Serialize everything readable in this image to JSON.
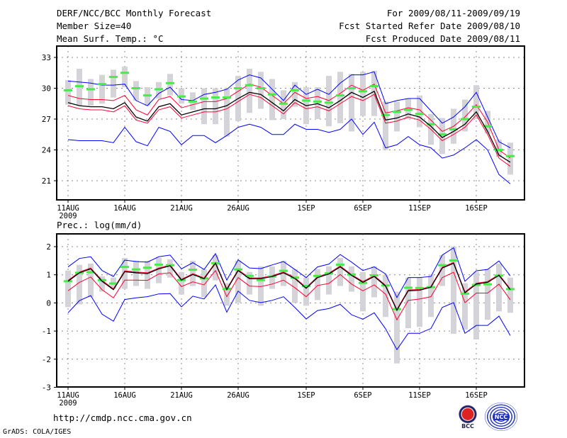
{
  "header": {
    "title": "DERF/NCC/BCC Monthly Forecast",
    "member_size": "Member Size=40",
    "variable": "Mean Surf. Temp.: °C",
    "period": "For 2009/08/11-2009/09/19",
    "started": "Fcst Started Refer Date 2009/08/10",
    "produced": "Fcst Produced Date 2009/08/11"
  },
  "footer": {
    "url": "http://cmdp.ncc.cma.gov.cn",
    "grads": "GrADS: COLA/IGES",
    "logo_bcc": "BCC",
    "logo_ncc": "NCC"
  },
  "colors": {
    "ensemble_range": "#0000ff",
    "spread": "#ff0033",
    "mean": "#000000",
    "median": "#44ee44",
    "bars": "#d3d3d8"
  },
  "chart_data": [
    {
      "type": "line",
      "title": "Mean Surf. Temp.: °C",
      "ylim": [
        19.2,
        34.1
      ],
      "yticks": [
        21,
        24,
        27,
        30,
        33
      ],
      "xticks": [
        "11AUG",
        "16AUG",
        "21AUG",
        "26AUG",
        "1SEP",
        "6SEP",
        "11SEP",
        "16SEP"
      ],
      "xtick_days": [
        0,
        5,
        10,
        15,
        21,
        26,
        31,
        36
      ],
      "year_label": "2009",
      "days": 40,
      "series": {
        "blue_upper": [
          30.7,
          30.6,
          30.5,
          30.3,
          30.3,
          30.4,
          28.8,
          28.3,
          29.5,
          30.1,
          28.9,
          28.8,
          29.4,
          29.6,
          29.9,
          30.8,
          31.3,
          31.0,
          29.9,
          28.8,
          30.3,
          29.4,
          29.9,
          29.4,
          30.5,
          31.3,
          31.3,
          31.6,
          28.5,
          28.8,
          29.0,
          29.0,
          27.8,
          26.6,
          27.2,
          28.2,
          29.6,
          27.2,
          24.8,
          24.2
        ],
        "red_upper": [
          29.3,
          29.0,
          28.9,
          28.9,
          28.8,
          29.3,
          27.9,
          27.4,
          28.9,
          29.2,
          28.1,
          28.4,
          28.7,
          28.7,
          29.0,
          29.7,
          30.4,
          30.1,
          29.3,
          28.5,
          29.6,
          29.0,
          29.2,
          28.8,
          29.5,
          30.3,
          29.8,
          30.4,
          27.6,
          27.8,
          28.1,
          27.9,
          26.9,
          25.8,
          26.3,
          27.2,
          28.4,
          26.7,
          24.0,
          23.2
        ],
        "mean": [
          28.6,
          28.3,
          28.2,
          28.2,
          28.0,
          28.6,
          27.2,
          26.8,
          28.2,
          28.5,
          27.4,
          27.7,
          28.0,
          28.0,
          28.3,
          29.0,
          29.6,
          29.4,
          28.6,
          27.8,
          28.9,
          28.3,
          28.5,
          28.1,
          28.8,
          29.6,
          29.1,
          29.7,
          26.9,
          27.1,
          27.5,
          27.2,
          26.3,
          25.2,
          25.8,
          26.5,
          27.7,
          25.8,
          23.5,
          22.8
        ],
        "red_lower": [
          28.3,
          28.0,
          27.9,
          27.9,
          27.7,
          28.3,
          26.9,
          26.6,
          27.9,
          28.2,
          27.1,
          27.4,
          27.7,
          27.7,
          28.0,
          28.7,
          29.4,
          29.1,
          28.3,
          27.5,
          28.6,
          28.0,
          28.2,
          27.8,
          28.5,
          29.2,
          28.8,
          29.4,
          26.6,
          26.8,
          27.2,
          26.9,
          26.0,
          24.9,
          25.5,
          26.2,
          27.4,
          25.5,
          23.2,
          22.4
        ],
        "blue_lower": [
          25.0,
          24.9,
          24.9,
          24.9,
          24.7,
          26.2,
          24.8,
          24.4,
          26.2,
          25.8,
          24.5,
          25.4,
          25.4,
          24.7,
          25.4,
          26.2,
          26.5,
          26.2,
          25.5,
          25.5,
          26.5,
          26.0,
          26.0,
          25.7,
          26.0,
          27.0,
          25.5,
          26.7,
          24.2,
          24.5,
          25.3,
          24.5,
          24.2,
          23.2,
          23.5,
          24.2,
          25.0,
          24.0,
          21.6,
          20.7
        ],
        "median": [
          29.8,
          30.2,
          29.9,
          30.4,
          31.1,
          31.5,
          30.0,
          29.3,
          29.9,
          30.5,
          29.2,
          28.7,
          29.0,
          29.1,
          29.1,
          30.0,
          30.3,
          30.0,
          29.4,
          28.5,
          29.8,
          28.8,
          28.7,
          28.6,
          29.3,
          30.0,
          29.7,
          30.2,
          27.4,
          27.7,
          27.9,
          27.5,
          26.5,
          25.5,
          26.0,
          27.0,
          28.2,
          26.3,
          24.0,
          23.4
        ],
        "bar_high": [
          30.8,
          31.9,
          30.9,
          31.3,
          31.8,
          32.1,
          30.7,
          30.1,
          30.6,
          31.4,
          30.0,
          29.6,
          30.0,
          30.0,
          30.0,
          31.2,
          31.9,
          31.6,
          30.9,
          29.8,
          30.6,
          30.1,
          30.1,
          31.2,
          31.6,
          31.4,
          31.6,
          31.7,
          28.7,
          28.7,
          29.0,
          29.3,
          27.5,
          27.1,
          28.0,
          28.9,
          30.3,
          27.8,
          25.0,
          24.7
        ],
        "bar_low": [
          28.4,
          28.3,
          28.3,
          28.5,
          29.1,
          30.1,
          28.8,
          28.3,
          29.0,
          29.3,
          28.5,
          27.9,
          26.5,
          26.5,
          25.3,
          26.8,
          27.6,
          28.0,
          26.9,
          27.0,
          28.2,
          26.5,
          27.0,
          26.3,
          26.6,
          25.8,
          27.3,
          27.3,
          24.0,
          25.8,
          27.0,
          26.2,
          24.5,
          23.6,
          24.6,
          25.8,
          27.0,
          25.6,
          23.3,
          21.6
        ]
      }
    },
    {
      "type": "line",
      "title": "Prec.: log(mm/d)",
      "ylim": [
        -3,
        2.5
      ],
      "yticks": [
        -3,
        -2,
        -1,
        0,
        1,
        2
      ],
      "xticks": [
        "11AUG",
        "16AUG",
        "21AUG",
        "26AUG",
        "1SEP",
        "6SEP",
        "11SEP",
        "16SEP"
      ],
      "xtick_days": [
        0,
        5,
        10,
        15,
        21,
        26,
        31,
        36
      ],
      "year_label": "2009",
      "days": 40,
      "series": {
        "blue_upper": [
          1.28,
          1.58,
          1.64,
          1.15,
          0.94,
          1.52,
          1.47,
          1.45,
          1.64,
          1.7,
          1.21,
          1.43,
          1.19,
          1.75,
          0.81,
          1.53,
          1.24,
          1.22,
          1.35,
          1.47,
          1.19,
          0.9,
          1.28,
          1.38,
          1.72,
          1.45,
          1.15,
          1.28,
          1.03,
          0.19,
          0.9,
          0.9,
          0.94,
          1.7,
          1.96,
          0.77,
          1.14,
          1.19,
          1.49,
          0.96
        ],
        "red_upper": [
          0.8,
          1.1,
          1.24,
          0.8,
          0.5,
          1.14,
          1.1,
          1.07,
          1.24,
          1.35,
          0.84,
          1.04,
          0.89,
          1.44,
          0.5,
          1.18,
          0.89,
          0.89,
          0.97,
          1.1,
          0.9,
          0.55,
          0.93,
          1.06,
          1.31,
          1.01,
          0.76,
          0.97,
          0.63,
          -0.23,
          0.46,
          0.48,
          0.59,
          1.27,
          1.44,
          0.39,
          0.7,
          0.76,
          1.01,
          0.5
        ],
        "mean": [
          0.77,
          1.07,
          1.21,
          0.77,
          0.47,
          1.11,
          1.07,
          1.04,
          1.21,
          1.32,
          0.81,
          1.01,
          0.86,
          1.41,
          0.47,
          1.15,
          0.86,
          0.86,
          0.94,
          1.07,
          0.87,
          0.52,
          0.9,
          1.03,
          1.28,
          0.98,
          0.73,
          0.94,
          0.6,
          -0.26,
          0.43,
          0.45,
          0.56,
          1.24,
          1.41,
          0.36,
          0.67,
          0.73,
          0.98,
          0.47
        ],
        "red_lower": [
          0.43,
          0.73,
          0.92,
          0.47,
          0.18,
          0.81,
          0.81,
          0.8,
          1.03,
          1.07,
          0.58,
          0.75,
          0.64,
          1.15,
          0.22,
          0.9,
          0.6,
          0.58,
          0.67,
          0.81,
          0.54,
          0.22,
          0.62,
          0.69,
          1.01,
          0.67,
          0.43,
          0.64,
          0.31,
          -0.6,
          0.09,
          0.14,
          0.22,
          0.9,
          1.09,
          0.01,
          0.35,
          0.35,
          0.67,
          0.11
        ],
        "blue_lower": [
          -0.35,
          0.08,
          0.26,
          -0.4,
          -0.65,
          0.12,
          0.18,
          0.22,
          0.32,
          0.33,
          -0.14,
          0.24,
          0.14,
          0.64,
          -0.33,
          0.42,
          0.09,
          0.01,
          0.09,
          0.22,
          -0.16,
          -0.57,
          -0.27,
          -0.2,
          -0.05,
          -0.42,
          -0.58,
          -0.35,
          -0.92,
          -1.66,
          -1.08,
          -1.08,
          -0.91,
          -0.16,
          0.01,
          -1.08,
          -0.8,
          -0.8,
          -0.47,
          -1.16
        ],
        "median": [
          0.77,
          1.07,
          1.09,
          0.81,
          0.69,
          1.28,
          1.19,
          1.25,
          1.36,
          1.34,
          0.81,
          1.18,
          0.87,
          1.41,
          0.5,
          1.19,
          0.96,
          0.81,
          0.94,
          1.14,
          0.9,
          0.6,
          0.96,
          1.05,
          1.36,
          1.01,
          0.71,
          0.98,
          0.62,
          -0.22,
          0.54,
          0.53,
          0.56,
          1.34,
          1.51,
          0.33,
          0.64,
          0.66,
          0.97,
          0.49
        ],
        "bar_high": [
          1.15,
          1.35,
          1.4,
          0.95,
          0.9,
          1.6,
          1.5,
          1.5,
          1.6,
          1.55,
          1.1,
          1.5,
          1.2,
          1.7,
          0.7,
          1.5,
          1.1,
          1.3,
          1.3,
          1.5,
          1.2,
          0.9,
          1.2,
          1.3,
          1.6,
          1.3,
          1.1,
          1.3,
          1.0,
          0.4,
          0.9,
          0.9,
          1.0,
          1.7,
          2.0,
          0.7,
          1.1,
          1.2,
          1.4,
          0.9
        ],
        "bar_low": [
          -0.15,
          -0.05,
          0.2,
          0.4,
          0.5,
          0.5,
          0.6,
          0.5,
          0.7,
          0.9,
          0.3,
          0.6,
          0.2,
          0.8,
          -0.1,
          0.0,
          0.3,
          -0.1,
          0.5,
          0.6,
          0.0,
          -0.1,
          0.1,
          0.3,
          0.6,
          0.4,
          -0.3,
          0.2,
          -0.5,
          -2.15,
          -0.9,
          -0.85,
          -0.5,
          0.6,
          -1.1,
          -0.95,
          -1.3,
          -0.6,
          -0.3,
          -0.35
        ]
      }
    }
  ]
}
